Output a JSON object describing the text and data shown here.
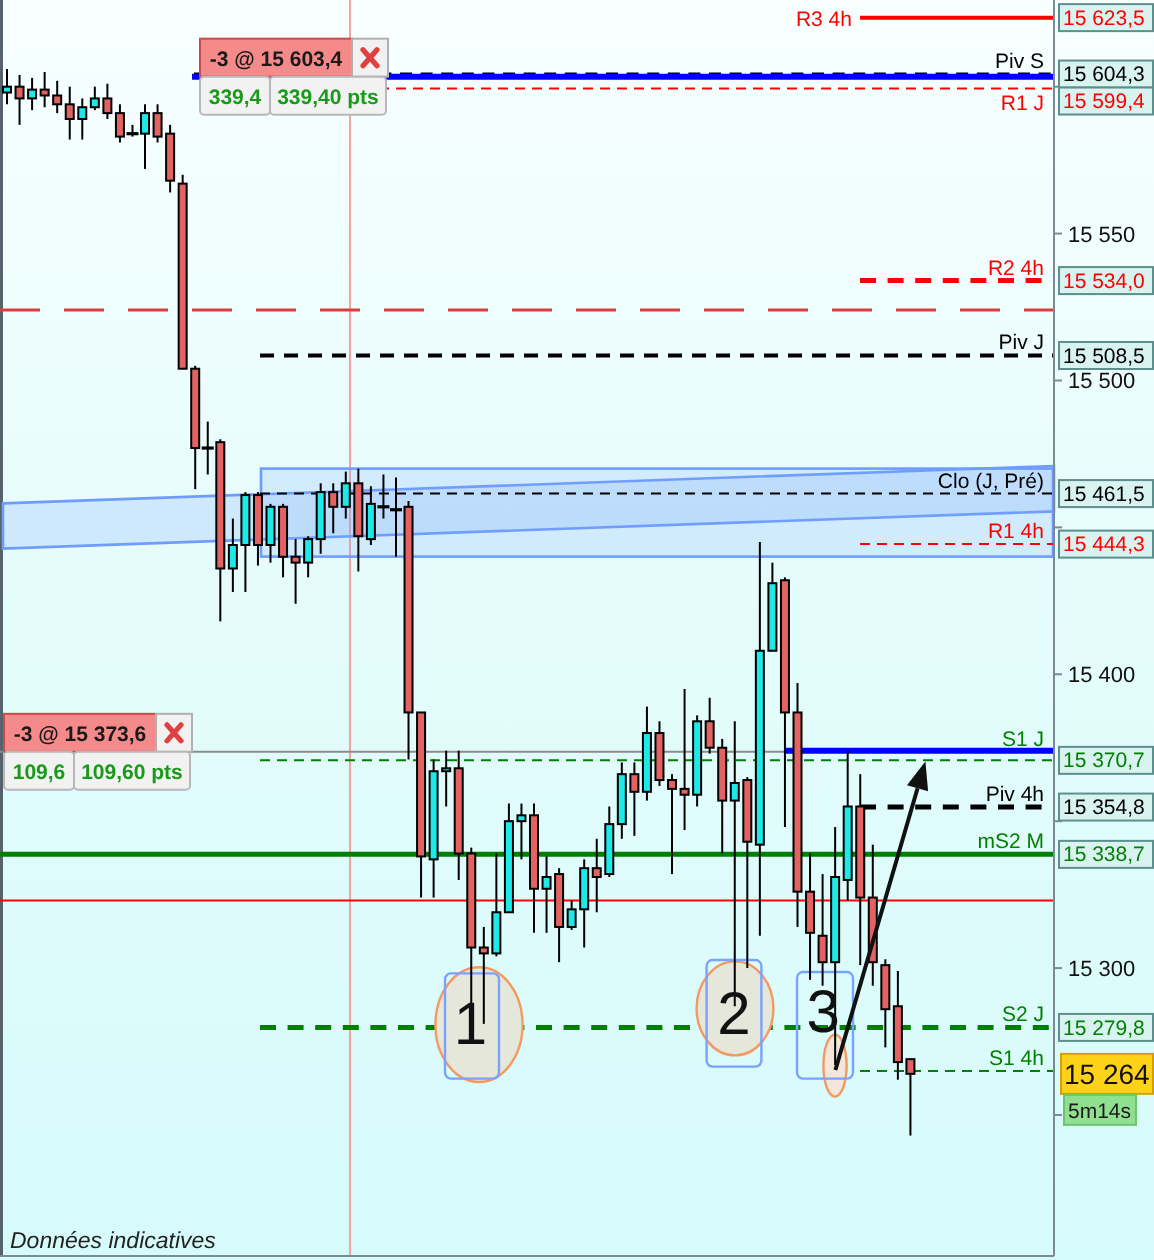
{
  "chart_data": {
    "type": "candlestick",
    "categories": [
      null,
      null,
      null,
      null,
      null,
      null,
      null,
      null,
      null,
      null,
      null,
      null,
      null,
      null,
      null,
      null,
      null,
      null,
      null,
      null,
      null,
      null,
      null,
      null,
      null,
      null,
      null,
      null,
      null,
      null,
      null,
      null,
      null,
      null,
      null,
      null,
      null,
      null,
      null,
      null,
      null,
      null,
      null,
      null,
      null,
      null,
      null,
      null,
      null,
      null,
      null,
      null,
      null,
      null,
      null,
      null,
      null,
      null,
      null,
      null,
      null,
      null,
      null,
      null,
      null,
      null,
      null,
      null,
      null,
      null,
      null,
      null,
      null,
      null,
      null,
      null,
      null,
      null,
      null,
      null,
      null,
      null,
      null,
      null
    ],
    "ohlc": [
      [
        15598,
        15606,
        15594,
        15600
      ],
      [
        15600,
        15604,
        15587,
        15596
      ],
      [
        15596,
        15603,
        15592,
        15599
      ],
      [
        15599,
        15605,
        15593,
        15597
      ],
      [
        15597,
        15602,
        15591,
        15594
      ],
      [
        15594,
        15600,
        15582,
        15589
      ],
      [
        15589,
        15596,
        15582,
        15593
      ],
      [
        15593,
        15600,
        15592,
        15596
      ],
      [
        15596,
        15601,
        15589,
        15591
      ],
      [
        15591,
        15594,
        15581,
        15583
      ],
      [
        15584,
        15587,
        15583,
        15584
      ],
      [
        15584,
        15594,
        15572,
        15591
      ],
      [
        15591,
        15594,
        15581,
        15583
      ],
      [
        15584,
        15587,
        15564,
        15568
      ],
      [
        15567,
        15570,
        15504,
        15504
      ],
      [
        15504,
        15505,
        15463,
        15477
      ],
      [
        15477,
        15486,
        15468,
        15477
      ],
      [
        15479,
        15480,
        15418,
        15436
      ],
      [
        15436,
        15453,
        15428,
        15444
      ],
      [
        15444,
        15462,
        15428,
        15461
      ],
      [
        15461,
        15462,
        15437,
        15444
      ],
      [
        15444,
        15458,
        15438,
        15457
      ],
      [
        15457,
        15458,
        15433,
        15440
      ],
      [
        15440,
        15446,
        15424,
        15438
      ],
      [
        15438,
        15447,
        15433,
        15446
      ],
      [
        15446,
        15465,
        15441,
        15462
      ],
      [
        15462,
        15465,
        15448,
        15457
      ],
      [
        15457,
        15469,
        15453,
        15465
      ],
      [
        15465,
        15470,
        15435,
        15447
      ],
      [
        15446,
        15464,
        15444,
        15458
      ],
      [
        15457,
        15468,
        15453,
        15457
      ],
      [
        15456,
        15467,
        15440,
        15456
      ],
      [
        15457,
        15459,
        15371,
        15387
      ],
      [
        15387,
        15387,
        15324,
        15338
      ],
      [
        15337,
        15371,
        15324,
        15367
      ],
      [
        15367,
        15374,
        15355,
        15368
      ],
      [
        15368,
        15374,
        15330,
        15339
      ],
      [
        15339,
        15341,
        15281,
        15307
      ],
      [
        15307,
        15314,
        15281,
        15305
      ],
      [
        15305,
        15339,
        15304,
        15319
      ],
      [
        15319,
        15356,
        15319,
        15350
      ],
      [
        15350,
        15356,
        15337,
        15352
      ],
      [
        15352,
        15356,
        15312,
        15327
      ],
      [
        15327,
        15338,
        15312,
        15331
      ],
      [
        15332,
        15334,
        15302,
        15314
      ],
      [
        15314,
        15323,
        15313,
        15320
      ],
      [
        15320,
        15337,
        15307,
        15334
      ],
      [
        15334,
        15344,
        15319,
        15331
      ],
      [
        15332,
        15355,
        15331,
        15349
      ],
      [
        15349,
        15370,
        15344,
        15366
      ],
      [
        15366,
        15370,
        15345,
        15360
      ],
      [
        15360,
        15389,
        15357,
        15380
      ],
      [
        15380,
        15384,
        15362,
        15364
      ],
      [
        15364,
        15366,
        15332,
        15361
      ],
      [
        15361,
        15395,
        15347,
        15359
      ],
      [
        15359,
        15386,
        15355,
        15384
      ],
      [
        15384,
        15392,
        15373,
        15375
      ],
      [
        15375,
        15378,
        15339,
        15357
      ],
      [
        15357,
        15384,
        15287,
        15363
      ],
      [
        15364,
        15365,
        15300,
        15343
      ],
      [
        15342,
        15445,
        15311,
        15408
      ],
      [
        15408,
        15438,
        15408,
        15431
      ],
      [
        15432,
        15433,
        15348,
        15387
      ],
      [
        15387,
        15397,
        15314,
        15326
      ],
      [
        15326,
        15339,
        15296,
        15312
      ],
      [
        15311,
        15332,
        15294,
        15302
      ],
      [
        15302,
        15348,
        15267,
        15331
      ],
      [
        15330,
        15374,
        15323,
        15355
      ],
      [
        15355,
        15366,
        15301,
        15324
      ],
      [
        15324,
        15342,
        15294,
        15302
      ],
      [
        15301,
        15303,
        15273,
        15286
      ],
      [
        15287,
        15299,
        15262,
        15268
      ],
      [
        15269,
        15269,
        15243,
        15264
      ],
      null,
      null,
      null,
      null,
      null,
      null,
      null,
      null,
      null,
      null,
      null
    ],
    "colors": [
      "#1de9e9",
      "#e36363",
      "#1de9e9",
      "#e36363",
      "#e36363",
      "#e36363",
      "#1de9e9",
      "#1de9e9",
      "#e36363",
      "#e36363",
      "#000000",
      "#1de9e9",
      "#e36363",
      "#e36363",
      "#e36363",
      "#e36363",
      "#000000",
      "#e36363",
      "#1de9e9",
      "#1de9e9",
      "#e36363",
      "#1de9e9",
      "#e36363",
      "#e36363",
      "#1de9e9",
      "#1de9e9",
      "#e36363",
      "#1de9e9",
      "#e36363",
      "#1de9e9",
      "#000000",
      "#000000",
      "#e36363",
      "#e36363",
      "#1de9e9",
      "#1de9e9",
      "#e36363",
      "#e36363",
      "#e36363",
      "#1de9e9",
      "#1de9e9",
      "#1de9e9",
      "#e36363",
      "#1de9e9",
      "#e36363",
      "#1de9e9",
      "#1de9e9",
      "#e36363",
      "#1de9e9",
      "#1de9e9",
      "#e36363",
      "#1de9e9",
      "#e36363",
      "#e36363",
      "#e36363",
      "#1de9e9",
      "#e36363",
      "#e36363",
      "#1de9e9",
      "#e36363",
      "#1de9e9",
      "#1de9e9",
      "#e36363",
      "#e36363",
      "#e36363",
      "#e36363",
      "#1de9e9",
      "#1de9e9",
      "#e36363",
      "#e36363",
      "#e36363",
      "#e36363",
      "#e36363",
      null,
      null,
      null,
      null,
      null,
      null,
      null,
      null,
      null,
      null,
      null
    ],
    "ylim": [
      15202,
      15629.5
    ],
    "yticks": [
      {
        "value": 15250,
        "label": null
      },
      {
        "value": 15300,
        "label": "15 300"
      },
      {
        "value": 15350,
        "label": null
      },
      {
        "value": 15400,
        "label": "15 400"
      },
      {
        "value": 15450,
        "label": null
      },
      {
        "value": 15500,
        "label": "15 500"
      },
      {
        "value": 15550,
        "label": "15 550"
      },
      {
        "value": 15600,
        "label": null
      }
    ],
    "tick_labels": "y",
    "ref_lines": [
      {
        "axis": "y",
        "value": 15623.5,
        "label": "R3 4h",
        "color": "#ff0000",
        "line_style": "solid"
      },
      {
        "axis": "y",
        "value": 15604.3,
        "label": "Piv S",
        "color": "#000000",
        "line_style": "dashed"
      },
      {
        "axis": "y",
        "value": 15603.4,
        "label": "-3 @ 15 603,4",
        "color": "#0000ff",
        "line_style": "solid"
      },
      {
        "axis": "y",
        "value": 15599.4,
        "label": "R1 J",
        "color": "#ff0000",
        "line_style": "dashed"
      },
      {
        "axis": "y",
        "value": 15534.0,
        "label": "R2 4h",
        "color": "#ff0000",
        "line_style": "dashed"
      },
      {
        "axis": "y",
        "value": 15524,
        "color": "#e03c3c",
        "line_style": "dashed"
      },
      {
        "axis": "y",
        "value": 15508.5,
        "label": "Piv J",
        "color": "#000000",
        "line_style": "dashed"
      },
      {
        "axis": "y",
        "value": 15461.5,
        "label": "Clo (J, Pré)",
        "color": "#000000",
        "line_style": "dashed"
      },
      {
        "axis": "y",
        "value": 15444.3,
        "label": "R1 4h",
        "color": "#ff0000",
        "line_style": "dashed"
      },
      {
        "axis": "y",
        "value": 15373.6,
        "label": "-3 @ 15 373,6",
        "color": "#8c8c8c",
        "line_style": "solid"
      },
      {
        "axis": "y",
        "value": 15374,
        "color": "#0000ff",
        "line_style": "solid"
      },
      {
        "axis": "y",
        "value": 15370.7,
        "label": "S1 J",
        "color": "#008000",
        "line_style": "dashed"
      },
      {
        "axis": "y",
        "value": 15354.8,
        "label": "Piv 4h",
        "color": "#000000",
        "line_style": "dashed"
      },
      {
        "axis": "y",
        "value": 15338.7,
        "label": "mS2 M",
        "color": "#008000",
        "line_style": "solid"
      },
      {
        "axis": "y",
        "value": 15323,
        "color": "#ff0000",
        "line_style": "solid"
      },
      {
        "axis": "y",
        "value": 15279.8,
        "label": "S2 J",
        "color": "#008000",
        "line_style": "dashed"
      },
      {
        "axis": "y",
        "value": 15265,
        "label": "S1 4h",
        "color": "#008000",
        "line_style": "dashed"
      }
    ],
    "annotations": [
      "15 623,5",
      "15 604,3",
      "15 599,4",
      "15 534,0",
      "15 508,5",
      "15 461,5",
      "15 444,3",
      "15 370,7",
      "15 354,8",
      "15 338,7",
      "15 279,8",
      "15 264",
      "5m14s",
      "339,4",
      "339,40 pts",
      "109,6",
      "109,60 pts",
      "1",
      "2",
      "3",
      "Données indicatives"
    ]
  }
}
